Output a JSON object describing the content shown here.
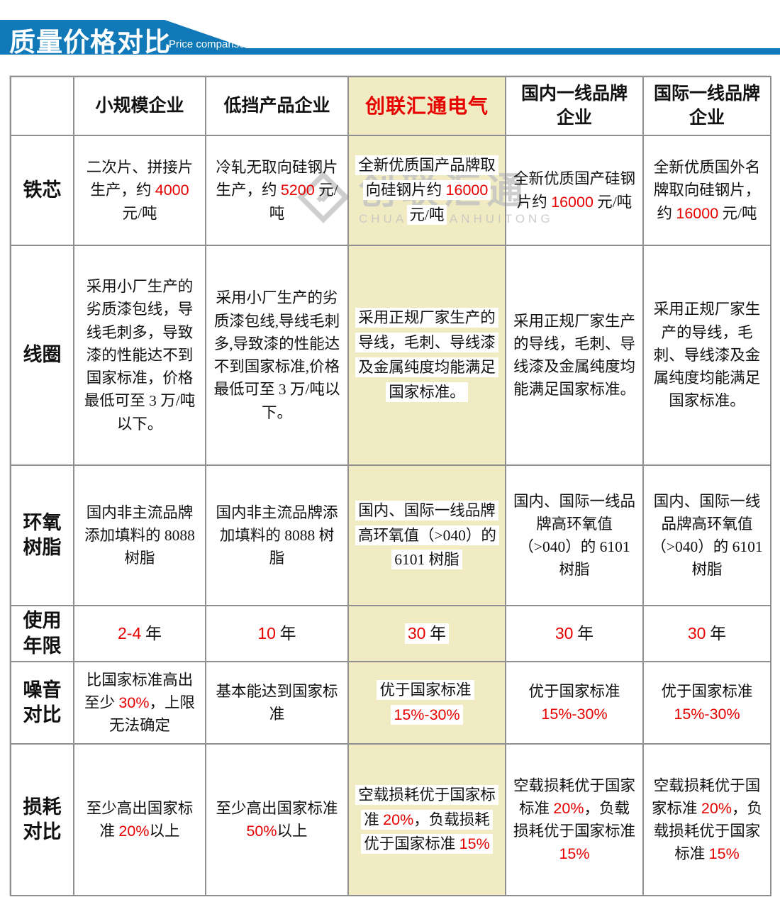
{
  "banner": {
    "title": "质量价格对比",
    "subtitle": "Price comparison"
  },
  "watermark": {
    "text": "创联汇通",
    "subtext": "CHUANGLIANHUITONG"
  },
  "colors": {
    "banner_blue": "#1179b7",
    "highlight_red": "#e60000",
    "brand_column_bg": "#f0ebc2",
    "grid_gray": "#8f8f8f"
  },
  "table": {
    "brand_column": 3,
    "columns": [
      "",
      "小规模企业",
      "低挡产品企业",
      "创联汇通电气",
      "国内一线品牌企业",
      "国际一线品牌企业"
    ],
    "rows": [
      {
        "label": "铁芯",
        "cells": [
          [
            {
              "t": "二次片、拼接片生产，约 "
            },
            {
              "t": "4000",
              "red": true
            },
            {
              "t": " 元/吨"
            }
          ],
          [
            {
              "t": "冷轧无取向硅钢片生产，约 "
            },
            {
              "t": "5200",
              "red": true
            },
            {
              "t": " 元/吨"
            }
          ],
          [
            {
              "t": "全新优质国产品牌取向硅钢片约 "
            },
            {
              "t": "16000",
              "red": true
            },
            {
              "t": " 元/吨"
            }
          ],
          [
            {
              "t": "全新优质国产硅钢片约 "
            },
            {
              "t": "16000",
              "red": true
            },
            {
              "t": " 元/吨"
            }
          ],
          [
            {
              "t": "全新优质国外名牌取向硅钢片，约 "
            },
            {
              "t": "16000",
              "red": true
            },
            {
              "t": " 元/吨"
            }
          ]
        ]
      },
      {
        "label": "线圈",
        "cells": [
          [
            {
              "t": "采用小厂生产的劣质漆包线，导线毛刺多，导致漆的性能达不到国家标准，价格最低可至 3 万/吨以下。"
            }
          ],
          [
            {
              "t": "采用小厂生产的劣质漆包线,导线毛刺多,导致漆的性能达不到国家标准,价格最低可至 3 万/吨以下。"
            }
          ],
          [
            {
              "t": "采用正规厂家生产的导线，毛刺、导线漆及金属纯度均能满足国家标准。"
            }
          ],
          [
            {
              "t": "采用正规厂家生产的导线，毛刺、导线漆及金属纯度均能满足国家标准。"
            }
          ],
          [
            {
              "t": "采用正规厂家生产的导线，毛刺、导线漆及金属纯度均能满足国家标准。"
            }
          ]
        ]
      },
      {
        "label": "环氧树脂",
        "cells": [
          [
            {
              "t": "国内非主流品牌添加填料的 8088 树脂"
            }
          ],
          [
            {
              "t": "国内非主流品牌添加填料的 8088 树脂"
            }
          ],
          [
            {
              "t": "国内、国际一线品牌高环氧值（>040）的 6101 树脂"
            }
          ],
          [
            {
              "t": "国内、国际一线品牌高环氧值（>040）的 6101 树脂"
            }
          ],
          [
            {
              "t": "国内、国际一线品牌高环氧值（>040）的 6101 树脂"
            }
          ]
        ]
      },
      {
        "label": "使用年限",
        "cells": [
          [
            {
              "t": "2-4",
              "red": true
            },
            {
              "t": " 年"
            }
          ],
          [
            {
              "t": "10",
              "red": true
            },
            {
              "t": " 年"
            }
          ],
          [
            {
              "t": "30",
              "red": true
            },
            {
              "t": " 年"
            }
          ],
          [
            {
              "t": "30",
              "red": true
            },
            {
              "t": " 年"
            }
          ],
          [
            {
              "t": "30",
              "red": true
            },
            {
              "t": " 年"
            }
          ]
        ]
      },
      {
        "label": "噪音对比",
        "cells": [
          [
            {
              "t": "比国家标准高出至少 "
            },
            {
              "t": "30%",
              "red": true
            },
            {
              "t": "，上限无法确定"
            }
          ],
          [
            {
              "t": "基本能达到国家标准"
            }
          ],
          [
            {
              "t": "优于国家标准 "
            },
            {
              "t": "15%-30%",
              "red": true
            }
          ],
          [
            {
              "t": "优于国家标准 "
            },
            {
              "t": "15%-30%",
              "red": true
            }
          ],
          [
            {
              "t": "优于国家标准 "
            },
            {
              "t": "15%-30%",
              "red": true
            }
          ]
        ]
      },
      {
        "label": "损耗对比",
        "cells": [
          [
            {
              "t": "至少高出国家标准 "
            },
            {
              "t": "20%",
              "red": true
            },
            {
              "t": "以上"
            }
          ],
          [
            {
              "t": "至少高出国家标准 "
            },
            {
              "t": "50%",
              "red": true
            },
            {
              "t": "以上"
            }
          ],
          [
            {
              "t": "空载损耗优于国家标准 "
            },
            {
              "t": "20%",
              "red": true
            },
            {
              "t": "，负载损耗优于国家标准 "
            },
            {
              "t": "15%",
              "red": true
            }
          ],
          [
            {
              "t": "空载损耗优于国家标准 "
            },
            {
              "t": "20%",
              "red": true
            },
            {
              "t": "，负载损耗优于国家标准 "
            },
            {
              "t": "15%",
              "red": true
            }
          ],
          [
            {
              "t": "空载损耗优于国家标准 "
            },
            {
              "t": "20%",
              "red": true
            },
            {
              "t": "，负载损耗优于国家标准 "
            },
            {
              "t": "15%",
              "red": true
            }
          ]
        ]
      }
    ]
  }
}
